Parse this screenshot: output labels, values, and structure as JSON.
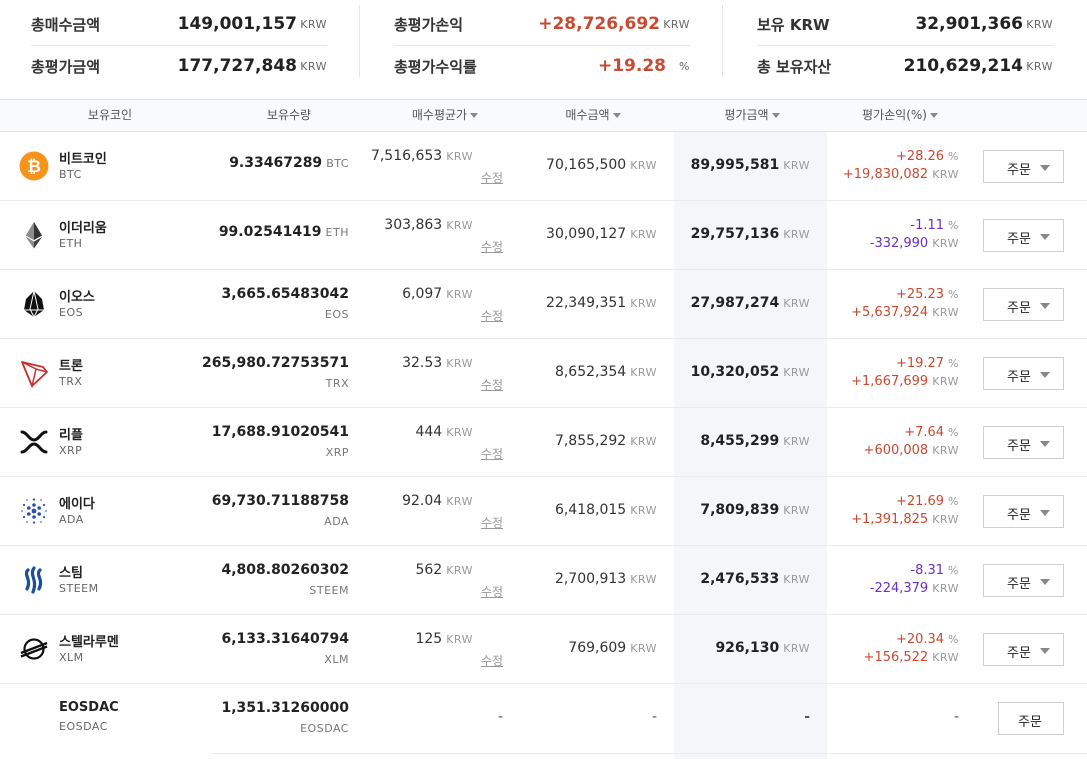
{
  "summary": {
    "total_buy": {
      "label": "총매수금액",
      "value": "149,001,157",
      "unit": "KRW"
    },
    "total_eval": {
      "label": "총평가금액",
      "value": "177,727,848",
      "unit": "KRW"
    },
    "total_pl": {
      "label": "총평가손익",
      "value": "+28,726,692",
      "unit": "KRW"
    },
    "total_rate": {
      "label": "총평가수익률",
      "value": "+19.28",
      "unit": "%"
    },
    "held_krw": {
      "label": "보유 KRW",
      "value": "32,901,366",
      "unit": "KRW"
    },
    "total_assets": {
      "label": "총 보유자산",
      "value": "210,629,214",
      "unit": "KRW"
    }
  },
  "table": {
    "headers": {
      "coin": "보유코인",
      "quantity": "보유수량",
      "avg_price": "매수평균가",
      "buy_amount": "매수금액",
      "eval_amount": "평가금액",
      "pl": "평가손익(%)"
    },
    "edit_label": "수정",
    "order_label": "주문",
    "unit": "KRW",
    "dash": "-",
    "rows": [
      {
        "name": "비트코인",
        "symbol": "BTC",
        "icon": "bitcoin-icon",
        "qty": "9.33467289",
        "avg": "7,516,653",
        "buy": "70,165,500",
        "eval": "89,995,581",
        "pct": "+28.26",
        "pl": "+19,830,082",
        "sign": "up"
      },
      {
        "name": "이더리움",
        "symbol": "ETH",
        "icon": "ethereum-icon",
        "qty": "99.02541419",
        "avg": "303,863",
        "buy": "30,090,127",
        "eval": "29,757,136",
        "pct": "-1.11",
        "pl": "-332,990",
        "sign": "down"
      },
      {
        "name": "이오스",
        "symbol": "EOS",
        "icon": "eos-icon",
        "qty": "3,665.65483042",
        "avg": "6,097",
        "buy": "22,349,351",
        "eval": "27,987,274",
        "pct": "+25.23",
        "pl": "+5,637,924",
        "sign": "up"
      },
      {
        "name": "트론",
        "symbol": "TRX",
        "icon": "tron-icon",
        "qty": "265,980.72753571",
        "avg": "32.53",
        "buy": "8,652,354",
        "eval": "10,320,052",
        "pct": "+19.27",
        "pl": "+1,667,699",
        "sign": "up"
      },
      {
        "name": "리플",
        "symbol": "XRP",
        "icon": "ripple-icon",
        "qty": "17,688.91020541",
        "avg": "444",
        "buy": "7,855,292",
        "eval": "8,455,299",
        "pct": "+7.64",
        "pl": "+600,008",
        "sign": "up"
      },
      {
        "name": "에이다",
        "symbol": "ADA",
        "icon": "cardano-icon",
        "qty": "69,730.71188758",
        "avg": "92.04",
        "buy": "6,418,015",
        "eval": "7,809,839",
        "pct": "+21.69",
        "pl": "+1,391,825",
        "sign": "up"
      },
      {
        "name": "스팀",
        "symbol": "STEEM",
        "icon": "steem-icon",
        "qty": "4,808.80260302",
        "avg": "562",
        "buy": "2,700,913",
        "eval": "2,476,533",
        "pct": "-8.31",
        "pl": "-224,379",
        "sign": "down"
      },
      {
        "name": "스텔라루멘",
        "symbol": "XLM",
        "icon": "stellar-icon",
        "qty": "6,133.31640794",
        "avg": "125",
        "buy": "769,609",
        "eval": "926,130",
        "pct": "+20.34",
        "pl": "+156,522",
        "sign": "up"
      },
      {
        "name": "EOSDAC",
        "symbol": "EOSDAC",
        "icon": "",
        "qty": "1,351.31260000",
        "avg": "",
        "buy": "",
        "eval": "",
        "pct": "",
        "pl": "",
        "sign": "none"
      }
    ]
  },
  "colors": {
    "up": "#c84a31",
    "down": "#6a2fc9",
    "bitcoin": "#f7931a",
    "tron": "#c7302c",
    "cardano": "#2a4fb8",
    "steem": "#1a5099"
  }
}
